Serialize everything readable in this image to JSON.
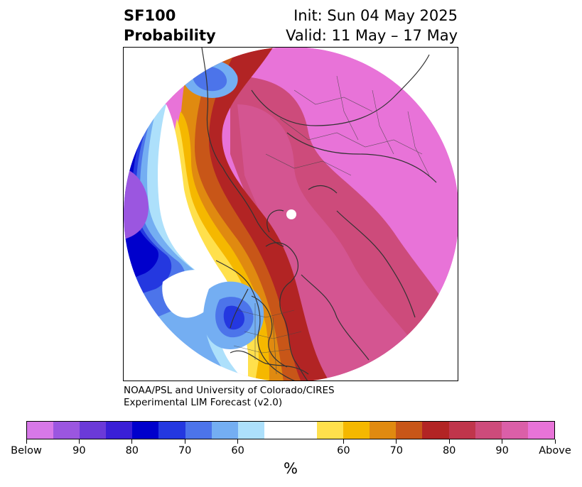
{
  "title": {
    "left": [
      "SF100",
      "Probability"
    ],
    "right": [
      "Init: Sun 04 May 2025",
      "Valid: 11 May – 17 May"
    ]
  },
  "credit": [
    "NOAA/PSL and University of Colorado/CIRES",
    "Experimental LIM Forecast (v2.0)"
  ],
  "colorbar": {
    "colors": [
      "#d778e8",
      "#9b56e0",
      "#6b3ad8",
      "#3a1fd6",
      "#0000cc",
      "#2438e0",
      "#4c74ea",
      "#74aef2",
      "#ade0fb",
      "#ffffff",
      "#ffffff",
      "#ffe04c",
      "#f5b800",
      "#e08a10",
      "#c85618",
      "#b22424",
      "#c0354b",
      "#cd4b7b",
      "#db5fa8",
      "#e873d8"
    ],
    "tick_labels": [
      "Below",
      "90",
      "80",
      "70",
      "60",
      "60",
      "70",
      "80",
      "90",
      "Above"
    ],
    "unit": "%"
  },
  "map": {
    "projection": "north polar stereographic",
    "field_colors": {
      "above_high": "#e873d8",
      "above_mid": "#cd4b7b",
      "above_strong": "#b22424",
      "warm_transition": [
        "#c85618",
        "#e08a10",
        "#f5b800",
        "#ffe04c"
      ],
      "neutral": "#ffffff",
      "cool_transition": [
        "#ade0fb",
        "#74aef2",
        "#4c74ea"
      ],
      "below_strong": [
        "#2438e0",
        "#0000cc"
      ],
      "below_high": "#9b56e0"
    }
  }
}
